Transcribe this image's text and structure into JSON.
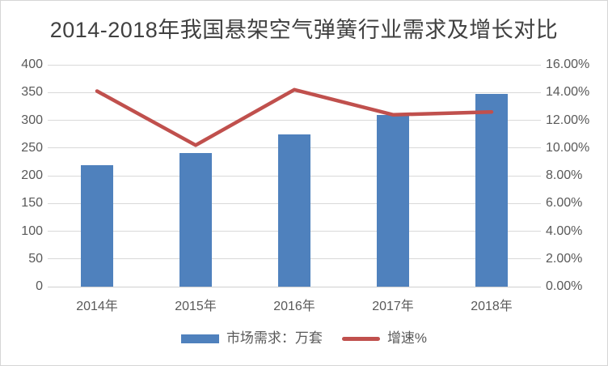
{
  "chart_data": {
    "type": "bar+line combo",
    "title": "2014-2018年我国悬架空气弹簧行业需求及增长对比",
    "categories": [
      "2014年",
      "2015年",
      "2016年",
      "2017年",
      "2018年"
    ],
    "series": [
      {
        "name": "市场需求：万套",
        "type": "bar",
        "axis": "left",
        "color": "#4f81bd",
        "values": [
          219,
          241,
          275,
          309,
          348
        ]
      },
      {
        "name": "增速%",
        "type": "line",
        "axis": "right",
        "color": "#c0504d",
        "values_percent": [
          14.1,
          10.2,
          14.2,
          12.4,
          12.6
        ]
      }
    ],
    "left_axis": {
      "min": 0,
      "max": 400,
      "step": 50,
      "ticks": [
        "0",
        "50",
        "100",
        "150",
        "200",
        "250",
        "300",
        "350",
        "400"
      ]
    },
    "right_axis": {
      "min": 0,
      "max": 16,
      "step": 2,
      "ticks": [
        "0.00%",
        "2.00%",
        "4.00%",
        "6.00%",
        "8.00%",
        "10.00%",
        "12.00%",
        "14.00%",
        "16.00%"
      ]
    },
    "grid": true,
    "legend_position": "bottom"
  },
  "legend": {
    "items": [
      {
        "label": "市场需求：万套",
        "color": "#4f81bd",
        "marker": "bar"
      },
      {
        "label": "增速%",
        "color": "#c0504d",
        "marker": "line"
      }
    ]
  },
  "colors": {
    "gridline": "#d9d9d9",
    "axis_text": "#595959",
    "title_text": "#404040",
    "bar": "#4f81bd",
    "line": "#c0504d",
    "frame_border": "#d6d6d6",
    "background": "#ffffff"
  }
}
